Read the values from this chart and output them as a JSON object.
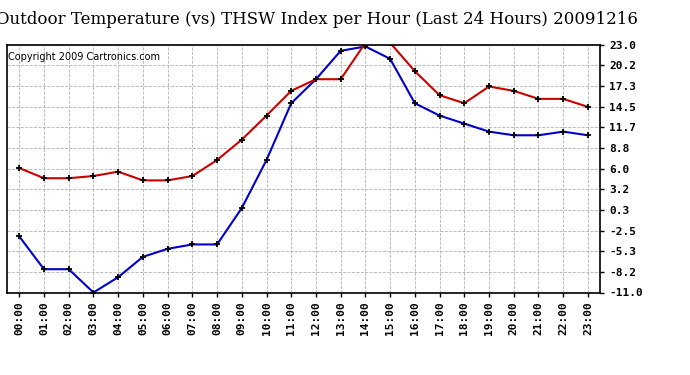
{
  "title": "Outdoor Temperature (vs) THSW Index per Hour (Last 24 Hours) 20091216",
  "copyright": "Copyright 2009 Cartronics.com",
  "hours": [
    "00:00",
    "01:00",
    "02:00",
    "03:00",
    "04:00",
    "05:00",
    "06:00",
    "07:00",
    "08:00",
    "09:00",
    "10:00",
    "11:00",
    "12:00",
    "13:00",
    "14:00",
    "15:00",
    "16:00",
    "17:00",
    "18:00",
    "19:00",
    "20:00",
    "21:00",
    "22:00",
    "23:00"
  ],
  "temp_blue": [
    -3.3,
    -7.8,
    -7.8,
    -11.0,
    -8.9,
    -6.1,
    -5.0,
    -4.4,
    -4.4,
    0.6,
    7.2,
    15.0,
    18.3,
    22.2,
    22.8,
    21.1,
    15.0,
    13.3,
    12.2,
    11.1,
    10.6,
    10.6,
    11.1,
    10.6
  ],
  "thsw_red": [
    6.1,
    4.7,
    4.7,
    5.0,
    5.6,
    4.4,
    4.4,
    5.0,
    7.2,
    10.0,
    13.3,
    16.7,
    18.3,
    18.3,
    23.3,
    23.3,
    19.4,
    16.1,
    15.0,
    17.3,
    16.7,
    15.6,
    15.6,
    14.5
  ],
  "yticks": [
    23.0,
    20.2,
    17.3,
    14.5,
    11.7,
    8.8,
    6.0,
    3.2,
    0.3,
    -2.5,
    -5.3,
    -8.2,
    -11.0
  ],
  "ymin": -11.0,
  "ymax": 23.0,
  "blue_color": "#0000cc",
  "red_color": "#cc0000",
  "bg_color": "#ffffff",
  "grid_color": "#aaaaaa",
  "title_fontsize": 12,
  "copyright_fontsize": 7,
  "tick_fontsize": 8
}
